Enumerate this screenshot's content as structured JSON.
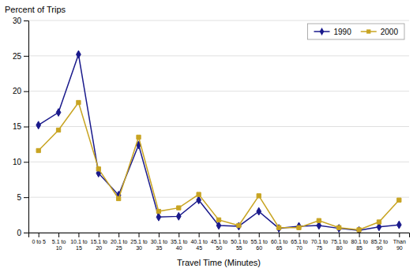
{
  "chart_data": {
    "type": "line",
    "xlabel": "Travel Time (Minutes)",
    "ylabel": "Percent of Trips",
    "categories": [
      "0 to 5",
      "5.1 to\n10",
      "10.1 to\n15",
      "15.1 to\n20",
      "20.1 to\n25",
      "25.1 to\n30",
      "30.1 to\n35",
      "35.1 to\n40",
      "40.1 to\n45",
      "45.1 to\n50",
      "50.1 to\n55",
      "55.1 to\n60",
      "60.1 to\n65",
      "65.1 to\n70",
      "70.1 to\n75",
      "75.1 to\n80",
      "80.1 to\n85",
      "85.2 to\n90",
      "Than\n90"
    ],
    "series": [
      {
        "name": "1990",
        "color": "#1a1a8c",
        "marker": "diamond",
        "values": [
          15.2,
          17.0,
          25.2,
          8.4,
          5.3,
          12.4,
          2.2,
          2.3,
          4.6,
          1.0,
          0.9,
          3.0,
          0.6,
          0.9,
          1.0,
          0.6,
          0.3,
          0.8,
          1.1
        ]
      },
      {
        "name": "2000",
        "color": "#c8a422",
        "marker": "square",
        "values": [
          11.6,
          14.5,
          18.4,
          9.0,
          4.8,
          13.5,
          3.0,
          3.5,
          5.4,
          1.8,
          1.0,
          5.2,
          0.7,
          0.7,
          1.7,
          0.7,
          0.4,
          1.5,
          4.6
        ]
      }
    ],
    "ylim": [
      0,
      30
    ],
    "yticks": [
      0,
      5,
      10,
      15,
      20,
      25,
      30
    ],
    "grid": true,
    "legend": "top-right"
  }
}
